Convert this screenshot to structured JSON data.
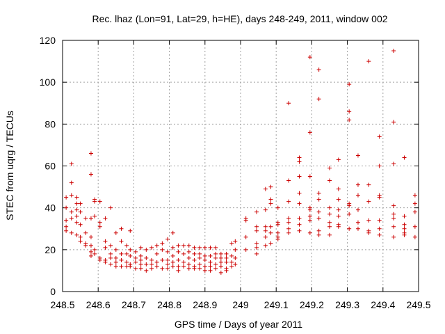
{
  "chart_data": {
    "type": "scatter",
    "title": "Rec. lhaz (Lon=91, Lat=29, h=HE), days 248-249, 2011, window 002",
    "xlabel": "GPS time / Days of year 2011",
    "ylabel": "STEC from uqrg / TECUs",
    "xlim": [
      248.5,
      249.5
    ],
    "ylim": [
      0,
      120
    ],
    "xticks": [
      248.5,
      248.6,
      248.7,
      248.8,
      248.9,
      249.0,
      249.1,
      249.2,
      249.3,
      249.4,
      249.5
    ],
    "xtick_labels": [
      "248.5",
      "248.6",
      "248.7",
      "248.8",
      "248.9",
      "249",
      "249.1",
      "249.2",
      "249.3",
      "249.4",
      "249.5"
    ],
    "yticks": [
      0,
      20,
      40,
      60,
      80,
      100,
      120
    ],
    "ytick_labels": [
      "0",
      "20",
      "40",
      "60",
      "80",
      "100",
      "120"
    ],
    "grid": true,
    "marker": "plus",
    "color": "#cc0000",
    "points": [
      [
        248.51,
        45
      ],
      [
        248.51,
        40
      ],
      [
        248.51,
        34
      ],
      [
        248.51,
        31
      ],
      [
        248.51,
        29
      ],
      [
        248.525,
        61
      ],
      [
        248.525,
        52
      ],
      [
        248.525,
        46
      ],
      [
        248.525,
        38
      ],
      [
        248.525,
        35
      ],
      [
        248.525,
        28
      ],
      [
        248.54,
        45
      ],
      [
        248.54,
        42
      ],
      [
        248.54,
        39
      ],
      [
        248.54,
        36
      ],
      [
        248.54,
        33
      ],
      [
        248.54,
        27
      ],
      [
        248.55,
        42
      ],
      [
        248.55,
        38
      ],
      [
        248.55,
        32
      ],
      [
        248.55,
        26
      ],
      [
        248.55,
        24
      ],
      [
        248.565,
        35
      ],
      [
        248.565,
        28
      ],
      [
        248.565,
        23
      ],
      [
        248.565,
        22
      ],
      [
        248.58,
        66
      ],
      [
        248.58,
        56
      ],
      [
        248.58,
        35
      ],
      [
        248.58,
        26
      ],
      [
        248.58,
        22
      ],
      [
        248.58,
        19
      ],
      [
        248.58,
        17
      ],
      [
        248.59,
        44
      ],
      [
        248.59,
        43
      ],
      [
        248.59,
        36
      ],
      [
        248.59,
        20
      ],
      [
        248.59,
        18
      ],
      [
        248.605,
        43
      ],
      [
        248.605,
        33
      ],
      [
        248.605,
        31
      ],
      [
        248.605,
        16
      ],
      [
        248.605,
        15
      ],
      [
        248.62,
        35
      ],
      [
        248.62,
        24
      ],
      [
        248.62,
        21
      ],
      [
        248.62,
        15
      ],
      [
        248.62,
        14
      ],
      [
        248.635,
        40
      ],
      [
        248.635,
        22
      ],
      [
        248.635,
        18
      ],
      [
        248.635,
        16
      ],
      [
        248.635,
        13
      ],
      [
        248.65,
        28
      ],
      [
        248.65,
        20
      ],
      [
        248.65,
        16
      ],
      [
        248.65,
        14
      ],
      [
        248.65,
        12
      ],
      [
        248.665,
        30
      ],
      [
        248.665,
        24
      ],
      [
        248.665,
        18
      ],
      [
        248.665,
        15
      ],
      [
        248.665,
        12
      ],
      [
        248.68,
        22
      ],
      [
        248.68,
        18
      ],
      [
        248.68,
        14
      ],
      [
        248.68,
        12
      ],
      [
        248.69,
        29
      ],
      [
        248.69,
        20
      ],
      [
        248.69,
        17
      ],
      [
        248.69,
        13
      ],
      [
        248.69,
        12
      ],
      [
        248.705,
        19
      ],
      [
        248.705,
        16
      ],
      [
        248.705,
        14
      ],
      [
        248.705,
        11
      ],
      [
        248.72,
        21
      ],
      [
        248.72,
        17
      ],
      [
        248.72,
        15
      ],
      [
        248.72,
        13
      ],
      [
        248.72,
        11
      ],
      [
        248.735,
        20
      ],
      [
        248.735,
        16
      ],
      [
        248.735,
        13
      ],
      [
        248.735,
        10
      ],
      [
        248.75,
        21
      ],
      [
        248.75,
        15
      ],
      [
        248.75,
        13
      ],
      [
        248.75,
        11
      ],
      [
        248.765,
        22
      ],
      [
        248.765,
        18
      ],
      [
        248.765,
        14
      ],
      [
        248.765,
        12
      ],
      [
        248.78,
        23
      ],
      [
        248.78,
        20
      ],
      [
        248.78,
        15
      ],
      [
        248.78,
        11
      ],
      [
        248.795,
        25
      ],
      [
        248.795,
        19
      ],
      [
        248.795,
        15
      ],
      [
        248.795,
        13
      ],
      [
        248.795,
        11
      ],
      [
        248.81,
        28
      ],
      [
        248.81,
        21
      ],
      [
        248.81,
        17
      ],
      [
        248.81,
        14
      ],
      [
        248.81,
        12
      ],
      [
        248.825,
        22
      ],
      [
        248.825,
        19
      ],
      [
        248.825,
        15
      ],
      [
        248.825,
        12
      ],
      [
        248.825,
        10
      ],
      [
        248.84,
        22
      ],
      [
        248.84,
        18
      ],
      [
        248.84,
        14
      ],
      [
        248.84,
        12
      ],
      [
        248.855,
        22
      ],
      [
        248.855,
        19
      ],
      [
        248.855,
        16
      ],
      [
        248.855,
        13
      ],
      [
        248.855,
        11
      ],
      [
        248.87,
        21
      ],
      [
        248.87,
        18
      ],
      [
        248.87,
        15
      ],
      [
        248.87,
        12
      ],
      [
        248.87,
        11
      ],
      [
        248.885,
        21
      ],
      [
        248.885,
        18
      ],
      [
        248.885,
        16
      ],
      [
        248.885,
        13
      ],
      [
        248.885,
        11
      ],
      [
        248.9,
        21
      ],
      [
        248.9,
        17
      ],
      [
        248.9,
        15
      ],
      [
        248.9,
        12
      ],
      [
        248.9,
        10
      ],
      [
        248.915,
        21
      ],
      [
        248.915,
        17
      ],
      [
        248.915,
        14
      ],
      [
        248.915,
        12
      ],
      [
        248.915,
        10
      ],
      [
        248.93,
        21
      ],
      [
        248.93,
        18
      ],
      [
        248.93,
        16
      ],
      [
        248.93,
        13
      ],
      [
        248.93,
        11
      ],
      [
        248.945,
        18
      ],
      [
        248.945,
        16
      ],
      [
        248.945,
        14
      ],
      [
        248.945,
        12
      ],
      [
        248.945,
        9
      ],
      [
        248.96,
        18
      ],
      [
        248.96,
        16
      ],
      [
        248.96,
        14
      ],
      [
        248.96,
        11
      ],
      [
        248.96,
        10
      ],
      [
        248.975,
        23
      ],
      [
        248.975,
        17
      ],
      [
        248.975,
        14
      ],
      [
        248.975,
        12
      ],
      [
        248.985,
        24
      ],
      [
        248.985,
        20
      ],
      [
        248.985,
        16
      ],
      [
        248.985,
        13
      ],
      [
        249.015,
        35
      ],
      [
        249.015,
        34
      ],
      [
        249.015,
        26
      ],
      [
        249.015,
        20
      ],
      [
        249.045,
        38
      ],
      [
        249.045,
        31
      ],
      [
        249.045,
        29
      ],
      [
        249.045,
        23
      ],
      [
        249.045,
        21
      ],
      [
        249.045,
        18
      ],
      [
        249.07,
        49
      ],
      [
        249.07,
        39
      ],
      [
        249.07,
        31
      ],
      [
        249.07,
        29
      ],
      [
        249.07,
        26
      ],
      [
        249.07,
        22
      ],
      [
        249.085,
        50
      ],
      [
        249.085,
        44
      ],
      [
        249.085,
        42
      ],
      [
        249.085,
        31
      ],
      [
        249.085,
        28
      ],
      [
        249.085,
        23
      ],
      [
        249.105,
        40
      ],
      [
        249.105,
        33
      ],
      [
        249.105,
        32
      ],
      [
        249.105,
        28
      ],
      [
        249.105,
        26
      ],
      [
        249.105,
        25
      ],
      [
        249.135,
        90
      ],
      [
        249.135,
        53
      ],
      [
        249.135,
        43
      ],
      [
        249.135,
        35
      ],
      [
        249.135,
        33
      ],
      [
        249.135,
        30
      ],
      [
        249.135,
        28
      ],
      [
        249.165,
        64
      ],
      [
        249.165,
        62
      ],
      [
        249.165,
        55
      ],
      [
        249.165,
        47
      ],
      [
        249.165,
        42
      ],
      [
        249.165,
        35
      ],
      [
        249.165,
        32
      ],
      [
        249.165,
        29
      ],
      [
        249.195,
        112
      ],
      [
        249.195,
        76
      ],
      [
        249.195,
        55
      ],
      [
        249.195,
        40
      ],
      [
        249.195,
        39
      ],
      [
        249.195,
        36
      ],
      [
        249.195,
        34
      ],
      [
        249.195,
        28
      ],
      [
        249.22,
        106
      ],
      [
        249.22,
        92
      ],
      [
        249.22,
        47
      ],
      [
        249.22,
        44
      ],
      [
        249.22,
        38
      ],
      [
        249.22,
        35
      ],
      [
        249.22,
        29
      ],
      [
        249.22,
        27
      ],
      [
        249.25,
        59
      ],
      [
        249.25,
        53
      ],
      [
        249.25,
        40
      ],
      [
        249.25,
        37
      ],
      [
        249.25,
        33
      ],
      [
        249.25,
        31
      ],
      [
        249.25,
        27
      ],
      [
        249.275,
        63
      ],
      [
        249.275,
        49
      ],
      [
        249.275,
        44
      ],
      [
        249.275,
        39
      ],
      [
        249.275,
        36
      ],
      [
        249.275,
        32
      ],
      [
        249.275,
        31
      ],
      [
        249.305,
        99
      ],
      [
        249.305,
        86
      ],
      [
        249.305,
        82
      ],
      [
        249.305,
        42
      ],
      [
        249.305,
        41
      ],
      [
        249.305,
        37
      ],
      [
        249.305,
        30
      ],
      [
        249.33,
        65
      ],
      [
        249.33,
        51
      ],
      [
        249.33,
        46
      ],
      [
        249.33,
        39
      ],
      [
        249.33,
        33
      ],
      [
        249.33,
        30
      ],
      [
        249.36,
        110
      ],
      [
        249.36,
        51
      ],
      [
        249.36,
        43
      ],
      [
        249.36,
        34
      ],
      [
        249.36,
        29
      ],
      [
        249.36,
        28
      ],
      [
        249.39,
        74
      ],
      [
        249.39,
        60
      ],
      [
        249.39,
        46
      ],
      [
        249.39,
        45
      ],
      [
        249.39,
        34
      ],
      [
        249.39,
        30
      ],
      [
        249.39,
        27
      ],
      [
        249.43,
        115
      ],
      [
        249.43,
        81
      ],
      [
        249.43,
        61
      ],
      [
        249.43,
        41
      ],
      [
        249.43,
        37
      ],
      [
        249.43,
        35
      ],
      [
        249.43,
        31
      ],
      [
        249.43,
        26
      ],
      [
        249.46,
        64
      ],
      [
        249.46,
        36
      ],
      [
        249.46,
        32
      ],
      [
        249.46,
        30
      ],
      [
        249.46,
        28
      ],
      [
        249.46,
        27
      ],
      [
        249.49,
        46
      ],
      [
        249.49,
        42
      ],
      [
        249.49,
        38
      ],
      [
        249.49,
        31
      ],
      [
        249.49,
        26
      ]
    ]
  }
}
